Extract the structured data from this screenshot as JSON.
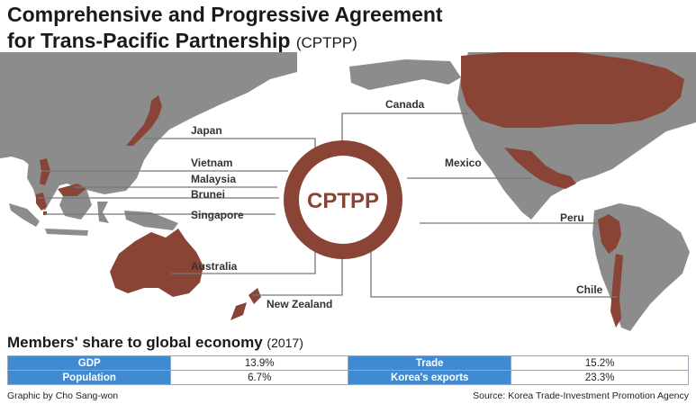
{
  "title": {
    "line1": "Comprehensive and Progressive Agreement",
    "line2": "for Trans-Pacific Partnership",
    "acronym": "(CPTPP)"
  },
  "hub": {
    "label": "CPTPP",
    "color": "#8a4435"
  },
  "colors": {
    "member": "#8a4435",
    "land": "#8c8c8c",
    "header": "#3f8ad0"
  },
  "members_west": [
    "Japan",
    "Vietnam",
    "Malaysia",
    "Brunei",
    "Singapore",
    "Australia",
    "New Zealand"
  ],
  "members_east": [
    "Canada",
    "Mexico",
    "Peru",
    "Chile"
  ],
  "economy": {
    "title": "Members' share to global economy",
    "year": "(2017)",
    "rows": [
      {
        "label1": "GDP",
        "value1": "13.9%",
        "label2": "Trade",
        "value2": "15.2%"
      },
      {
        "label1": "Population",
        "value1": "6.7%",
        "label2": "Korea's exports",
        "value2": "23.3%"
      }
    ]
  },
  "credit": "Graphic by Cho Sang-won",
  "source": "Source: Korea Trade-Investment Promotion Agency"
}
